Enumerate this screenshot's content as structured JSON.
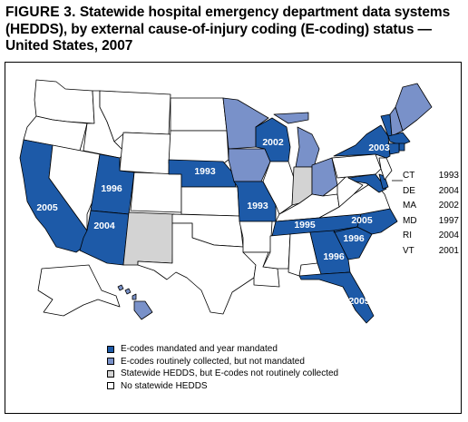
{
  "figure": {
    "label": "FIGURE 3.",
    "title": "Statewide hospital emergency department data systems (HEDDS), by external cause-of-injury coding (E-coding) status — United States, 2007"
  },
  "colors": {
    "mandated": "#1d5aa8",
    "routine": "#7991c9",
    "no_ecodes": "#d3d3d3",
    "none": "#ffffff"
  },
  "legend": [
    {
      "key": "mandated",
      "label": "E-codes mandated and year mandated"
    },
    {
      "key": "routine",
      "label": "E-codes routinely collected, but not mandated"
    },
    {
      "key": "no_ecodes",
      "label": "Statewide HEDDS, but E-codes not routinely collected"
    },
    {
      "key": "none",
      "label": "No statewide HEDDS"
    }
  ],
  "map_labels": {
    "CA": "2005",
    "UT": "1996",
    "AZ": "2004",
    "NE": "1993",
    "WI": "2002",
    "MO": "1993",
    "TN": "1995",
    "NC": "2005",
    "SC": "1996",
    "GA": "1996",
    "FL": "2005",
    "NY": "2003"
  },
  "northeast_list": [
    {
      "state": "CT",
      "year": "1993"
    },
    {
      "state": "DE",
      "year": "2004"
    },
    {
      "state": "MA",
      "year": "2002"
    },
    {
      "state": "MD",
      "year": "1997"
    },
    {
      "state": "RI",
      "year": "2004"
    },
    {
      "state": "VT",
      "year": "2001"
    }
  ],
  "states_by_status": {
    "mandated": [
      "CA",
      "UT",
      "AZ",
      "NE",
      "WI",
      "MO",
      "TN",
      "NC",
      "SC",
      "GA",
      "FL",
      "NY",
      "CT",
      "DE",
      "MA",
      "MD",
      "RI",
      "VT"
    ],
    "routine": [
      "MN",
      "IA",
      "MI",
      "OH",
      "ME",
      "NH",
      "HI"
    ],
    "no_ecodes": [
      "NM",
      "IN"
    ]
  }
}
